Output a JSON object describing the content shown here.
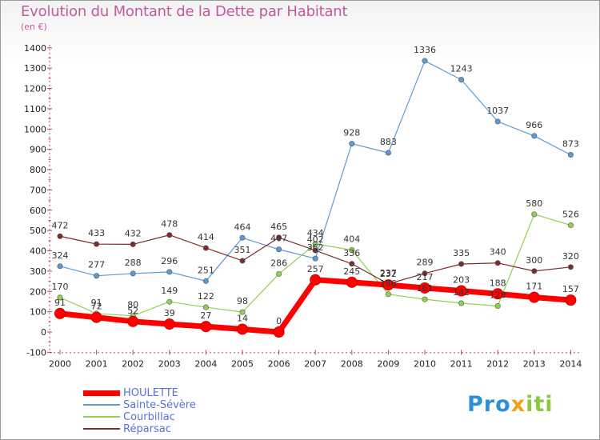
{
  "title": "Evolution du Montant de la Dette par Habitant",
  "subtitle": "(en €)",
  "logo": {
    "part1": "Pro",
    "part2": "x",
    "part3": "iti"
  },
  "colors": {
    "HOULETTE": "#ff0000",
    "Sainte-Sévère": "#5b9bd5",
    "Courbillac": "#92d050",
    "Réparsac": "#7b2c2c"
  },
  "chart_data": {
    "type": "line",
    "title": "Evolution du Montant de la Dette par Habitant",
    "subtitle": "(en €)",
    "x": [
      2000,
      2001,
      2002,
      2003,
      2004,
      2005,
      2006,
      2007,
      2008,
      2009,
      2010,
      2011,
      2012,
      2013,
      2014
    ],
    "ylim": [
      -100,
      1400
    ],
    "yticks": [
      -100,
      0,
      100,
      200,
      300,
      400,
      500,
      600,
      700,
      800,
      900,
      1000,
      1100,
      1200,
      1300,
      1400
    ],
    "grid": false,
    "legend_position": "bottom-left",
    "series": [
      {
        "name": "HOULETTE",
        "values": [
          91,
          72,
          52,
          39,
          27,
          14,
          0,
          257,
          245,
          232,
          217,
          203,
          188,
          171,
          157
        ]
      },
      {
        "name": "Sainte-Sévère",
        "values": [
          324,
          277,
          288,
          296,
          251,
          464,
          407,
          362,
          928,
          883,
          1336,
          1243,
          1037,
          966,
          873
        ]
      },
      {
        "name": "Courbillac",
        "values": [
          170,
          91,
          80,
          149,
          122,
          98,
          286,
          434,
          404,
          186,
          161,
          142,
          128,
          580,
          526
        ]
      },
      {
        "name": "Réparsac",
        "values": [
          472,
          433,
          432,
          478,
          414,
          351,
          465,
          402,
          336,
          237,
          289,
          335,
          340,
          300,
          320
        ]
      }
    ]
  }
}
